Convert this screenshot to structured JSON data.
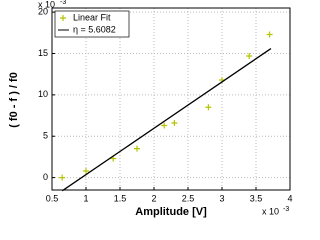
{
  "chart_data": {
    "type": "scatter",
    "xlabel": "Amplitude [V]",
    "ylabel": "( f0 - f ) / f0",
    "x_multiplier": {
      "base": "x 10",
      "exponent": "-3"
    },
    "y_multiplier": {
      "base": "x 10",
      "exponent": "-3"
    },
    "xlim": [
      0.5,
      4
    ],
    "xticks": [
      0.5,
      1,
      1.5,
      2,
      2.5,
      3,
      3.5,
      4
    ],
    "ylim": [
      -1.5,
      20.5
    ],
    "yticks": [
      0,
      5,
      10,
      15,
      20
    ],
    "grid": true,
    "legend": "upper left",
    "series": [
      {
        "name": "Linear Fit",
        "color": "#b5c400",
        "mode": "markers",
        "x": [
          0.65,
          1.0,
          1.4,
          1.75,
          2.15,
          2.3,
          2.8,
          3.0,
          3.4,
          3.7
        ],
        "values": [
          0.0,
          0.8,
          2.3,
          3.5,
          6.3,
          6.6,
          8.5,
          11.8,
          14.7,
          17.3
        ]
      },
      {
        "name": "η = 5.6082",
        "color": "#000000",
        "mode": "line",
        "x": [
          0.65,
          3.72
        ],
        "values": [
          -1.6,
          15.6
        ]
      }
    ]
  }
}
